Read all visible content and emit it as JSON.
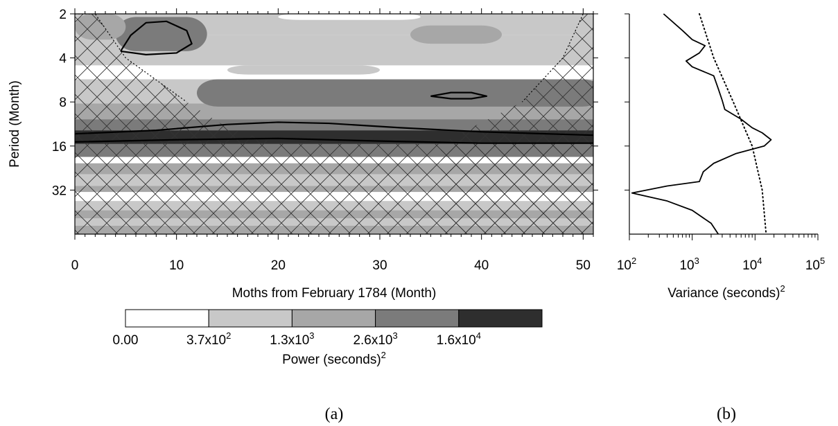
{
  "chart_data": [
    {
      "panel": "(a)",
      "type": "heatmap",
      "title": "",
      "xlabel": "Moths from February 1784 (Month)",
      "ylabel": "Period (Month)",
      "xlim": [
        0,
        51
      ],
      "ylim": [
        2,
        64
      ],
      "y_scale": "log2",
      "y_reversed": true,
      "x_ticks": [
        0,
        10,
        20,
        30,
        40,
        50
      ],
      "y_ticks": [
        2,
        4,
        8,
        16,
        32
      ],
      "y_tick_labels": [
        "2",
        "4",
        "8",
        "16",
        "32"
      ],
      "x_tick_labels": [
        "0",
        "10",
        "20",
        "30",
        "40",
        "50"
      ],
      "colorbar": {
        "label_base": "Power (seconds)",
        "label_sup": "2",
        "levels": [
          "0.00",
          "3.7x10",
          "1.3x10",
          "2.6x10",
          "1.6x10"
        ],
        "level_sups": [
          "",
          "2",
          "3",
          "3",
          "4"
        ],
        "colors": [
          "#ffffff",
          "#c8c8c8",
          "#a7a7a7",
          "#7b7b7b",
          "#2e2e2e"
        ]
      },
      "bands": [
        {
          "period_lo": 2.0,
          "period_hi": 2.8,
          "level": 1
        },
        {
          "period_lo": 2.8,
          "period_hi": 4.5,
          "level": 1
        },
        {
          "period_lo": 4.5,
          "period_hi": 5.6,
          "level": 0
        },
        {
          "period_lo": 5.6,
          "period_hi": 8.2,
          "level": 1
        },
        {
          "period_lo": 8.2,
          "period_hi": 10.5,
          "level": 2
        },
        {
          "period_lo": 10.5,
          "period_hi": 12.5,
          "level": 3
        },
        {
          "period_lo": 12.5,
          "period_hi": 15.5,
          "level": 4
        },
        {
          "period_lo": 15.5,
          "period_hi": 19.0,
          "level": 3
        },
        {
          "period_lo": 19.0,
          "period_hi": 21.0,
          "level": 0
        },
        {
          "period_lo": 21.0,
          "period_hi": 25.0,
          "level": 2
        },
        {
          "period_lo": 25.0,
          "period_hi": 30.0,
          "level": 1
        },
        {
          "period_lo": 30.0,
          "period_hi": 33.0,
          "level": 2
        },
        {
          "period_lo": 33.0,
          "period_hi": 38.0,
          "level": 0
        },
        {
          "period_lo": 38.0,
          "period_hi": 44.0,
          "level": 1
        },
        {
          "period_lo": 44.0,
          "period_hi": 50.0,
          "level": 2
        },
        {
          "period_lo": 50.0,
          "period_hi": 56.0,
          "level": 1
        },
        {
          "period_lo": 56.0,
          "period_hi": 64.0,
          "level": 2
        }
      ],
      "patches": [
        {
          "x": [
            12,
            52
          ],
          "period": [
            5.6,
            8.6
          ],
          "level": 3
        },
        {
          "x": [
            4,
            13
          ],
          "period": [
            2.1,
            3.6
          ],
          "level": 3
        },
        {
          "x": [
            33,
            42
          ],
          "period": [
            2.4,
            3.2
          ],
          "level": 2
        },
        {
          "x": [
            0,
            5
          ],
          "period": [
            2.0,
            3.0
          ],
          "level": 2
        },
        {
          "x": [
            20,
            34
          ],
          "period": [
            2.0,
            2.2
          ],
          "level": 0
        },
        {
          "x": [
            15,
            30
          ],
          "period": [
            4.5,
            5.2
          ],
          "level": 1
        }
      ],
      "significance_contours": [
        {
          "x": [
            4.5,
            5.5,
            7,
            9,
            11,
            11.5,
            10,
            7,
            4.5
          ],
          "period": [
            3.6,
            2.8,
            2.3,
            2.25,
            2.6,
            3.2,
            3.7,
            3.8,
            3.6
          ]
        },
        {
          "x": [
            35,
            37,
            39,
            40.5,
            39,
            37,
            35
          ],
          "period": [
            7.3,
            6.9,
            6.9,
            7.3,
            7.6,
            7.6,
            7.3
          ]
        },
        {
          "x": [
            0,
            8,
            15,
            20,
            25,
            32,
            40,
            51
          ],
          "period": [
            13.2,
            12.5,
            11.4,
            11.0,
            11.2,
            12.0,
            12.8,
            13.5
          ]
        },
        {
          "x": [
            0,
            10,
            20,
            30,
            40,
            51
          ],
          "period": [
            15.0,
            14.5,
            14.2,
            14.8,
            15.3,
            15.3
          ]
        }
      ],
      "cone_of_influence": {
        "left": [
          [
            0,
            2
          ],
          [
            2,
            2
          ],
          [
            5,
            4
          ],
          [
            11,
            8
          ],
          [
            15,
            12
          ],
          [
            20,
            15.5
          ],
          [
            51,
            15.5
          ]
        ],
        "right": [
          [
            51,
            2
          ],
          [
            50,
            2
          ],
          [
            48,
            4
          ],
          [
            44,
            8
          ],
          [
            39,
            12
          ],
          [
            36,
            15.5
          ]
        ]
      }
    },
    {
      "panel": "(b)",
      "type": "line",
      "title": "",
      "xlabel_base": "Variance (seconds)",
      "xlabel_sup": "2",
      "x_scale": "log10",
      "xlim": [
        100,
        100000
      ],
      "x_tick_labels": [
        "10",
        "10",
        "10",
        "10"
      ],
      "x_tick_sups": [
        "2",
        "3",
        "4",
        "5"
      ],
      "y_scale": "log2",
      "y_reversed": true,
      "ylim": [
        2,
        64
      ],
      "series": [
        {
          "style": "solid",
          "points": [
            {
              "variance": 350,
              "period": 2.0
            },
            {
              "variance": 700,
              "period": 2.6
            },
            {
              "variance": 1000,
              "period": 3.0
            },
            {
              "variance": 1600,
              "period": 3.3
            },
            {
              "variance": 1300,
              "period": 3.7
            },
            {
              "variance": 800,
              "period": 4.2
            },
            {
              "variance": 1000,
              "period": 4.6
            },
            {
              "variance": 2200,
              "period": 5.3
            },
            {
              "variance": 2600,
              "period": 6.5
            },
            {
              "variance": 3000,
              "period": 7.8
            },
            {
              "variance": 3300,
              "period": 9.0
            },
            {
              "variance": 6000,
              "period": 10.5
            },
            {
              "variance": 9000,
              "period": 12.0
            },
            {
              "variance": 13000,
              "period": 13.0
            },
            {
              "variance": 18000,
              "period": 14.5
            },
            {
              "variance": 14000,
              "period": 16.0
            },
            {
              "variance": 5000,
              "period": 18.0
            },
            {
              "variance": 2200,
              "period": 21.0
            },
            {
              "variance": 1500,
              "period": 24.0
            },
            {
              "variance": 1300,
              "period": 28.0
            },
            {
              "variance": 400,
              "period": 30.0
            },
            {
              "variance": 110,
              "period": 33.5
            },
            {
              "variance": 400,
              "period": 38.0
            },
            {
              "variance": 1000,
              "period": 44.0
            },
            {
              "variance": 2000,
              "period": 54.0
            },
            {
              "variance": 2600,
              "period": 64.0
            }
          ]
        },
        {
          "style": "dotted",
          "points": [
            {
              "variance": 1300,
              "period": 2.0
            },
            {
              "variance": 2200,
              "period": 4.0
            },
            {
              "variance": 4500,
              "period": 8.0
            },
            {
              "variance": 9000,
              "period": 16.0
            },
            {
              "variance": 13000,
              "period": 32.0
            },
            {
              "variance": 15000,
              "period": 64.0
            }
          ]
        }
      ]
    }
  ],
  "captions": {
    "a": "(a)",
    "b": "(b)"
  }
}
